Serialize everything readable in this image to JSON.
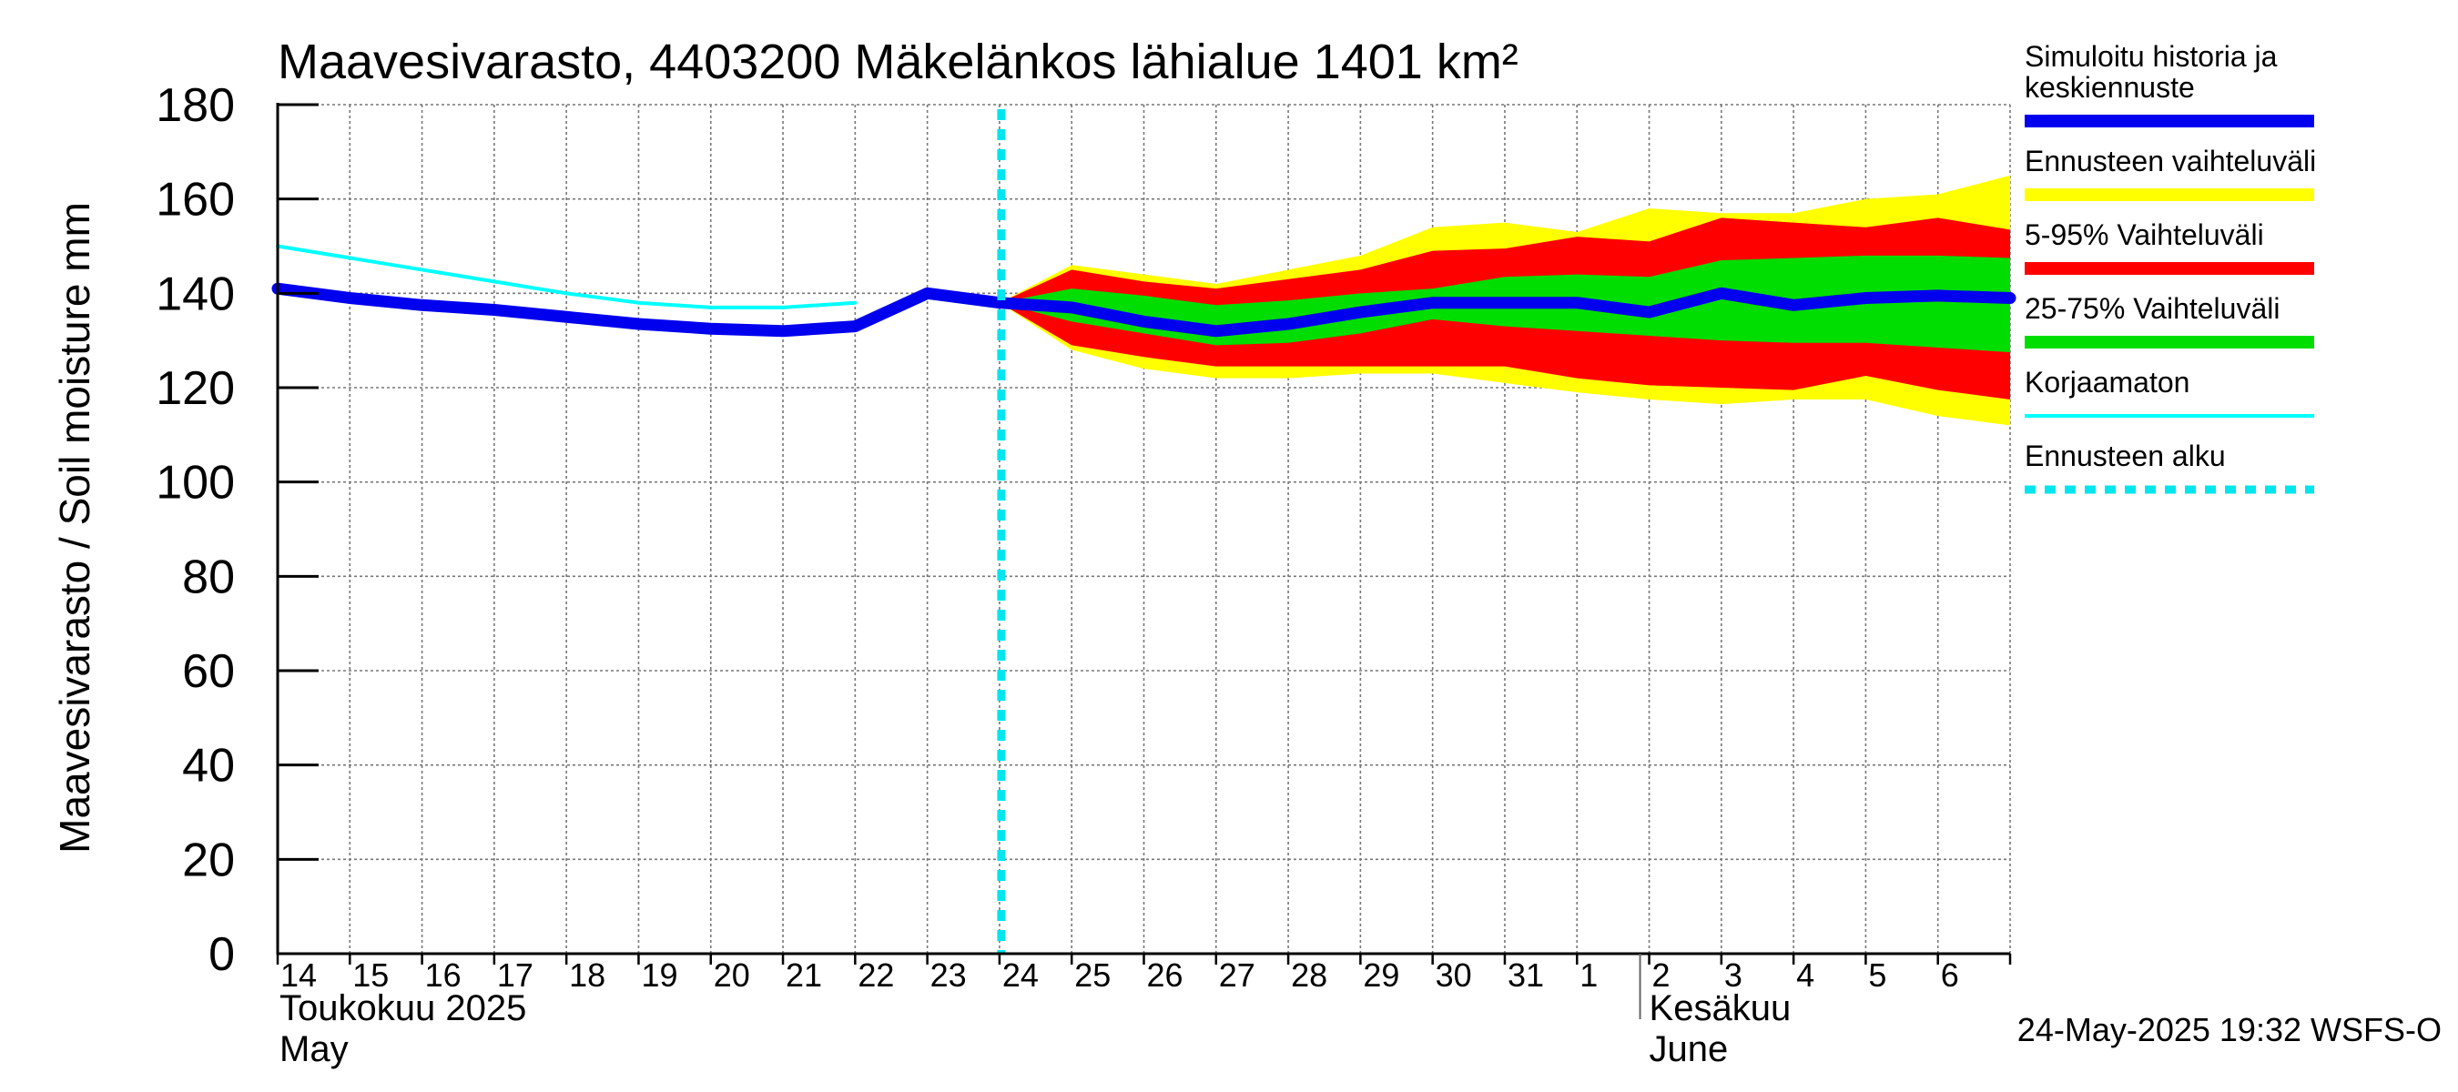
{
  "chart_data": {
    "type": "area",
    "title": "Maavesivarasto, 4403200 Mäkelänkos lähialue 1401 km²",
    "ylabel": "Maavesivarasto / Soil moisture   mm",
    "ylim": [
      0,
      180
    ],
    "yticks": [
      "0",
      "20",
      "40",
      "60",
      "80",
      "100",
      "120",
      "140",
      "160",
      "180"
    ],
    "grid": true,
    "x_day_range": [
      0,
      24
    ],
    "day_labels": [
      "14",
      "15",
      "16",
      "17",
      "18",
      "19",
      "20",
      "21",
      "22",
      "23",
      "24",
      "25",
      "26",
      "27",
      "28",
      "29",
      "30",
      "31",
      "1",
      "2",
      "3",
      "4",
      "5",
      "6"
    ],
    "month_labels": [
      {
        "line1": "Toukokuu  2025",
        "line2": "May",
        "day": 0
      },
      {
        "line1": "Kesäkuu",
        "line2": "June",
        "day": 19
      }
    ],
    "forecast_start_day": 10,
    "timestamp": "24-May-2025 19:32 WSFS-O",
    "legend": [
      {
        "label": "Simuloitu historia ja keskiennuste",
        "color": "#0000ee",
        "style": "thick"
      },
      {
        "label": "Ennusteen vaihteluväli",
        "color": "#ffff00",
        "style": "thick"
      },
      {
        "label": "5-95% Vaihteluväli",
        "color": "#ff0000",
        "style": "thick"
      },
      {
        "label": "25-75% Vaihteluväli",
        "color": "#00dd00",
        "style": "thick"
      },
      {
        "label": "Korjaamaton",
        "color": "#00ffff",
        "style": "thin"
      },
      {
        "label": "Ennusteen alku",
        "color": "#00e5ee",
        "style": "dashed"
      }
    ],
    "series": {
      "history": {
        "x": [
          0,
          1,
          2,
          3,
          4,
          5,
          6,
          7,
          8,
          9,
          10
        ],
        "values": [
          141,
          139,
          137.5,
          136.5,
          135,
          133.5,
          132.5,
          132,
          133,
          140,
          138
        ]
      },
      "uncorrected": {
        "x": [
          0,
          1,
          2,
          3,
          4,
          5,
          6,
          7,
          8
        ],
        "values": [
          150,
          147.5,
          145,
          142.5,
          140,
          138,
          137,
          137,
          138
        ]
      },
      "forecast_mean": {
        "x": [
          10,
          11,
          12,
          13,
          14,
          15,
          16,
          17,
          18,
          19,
          20,
          21,
          22,
          23,
          24
        ],
        "values": [
          138,
          137,
          134,
          132,
          133.5,
          136,
          138,
          138,
          138,
          136,
          140,
          137.5,
          139,
          139.5,
          139
        ]
      },
      "band_full": {
        "x": [
          10,
          11,
          12,
          13,
          14,
          15,
          16,
          17,
          18,
          19,
          20,
          21,
          22,
          23,
          24
        ],
        "upper": [
          138,
          146,
          144,
          142,
          145,
          148,
          154,
          155,
          153,
          158,
          157,
          157,
          160,
          161,
          165
        ],
        "lower": [
          138,
          128,
          124,
          122,
          122,
          123,
          123,
          121,
          119,
          117.5,
          116.5,
          117.5,
          117.5,
          114,
          112
        ]
      },
      "band_5_95": {
        "x": [
          10,
          11,
          12,
          13,
          14,
          15,
          16,
          17,
          18,
          19,
          20,
          21,
          22,
          23,
          24
        ],
        "upper": [
          138,
          145,
          142.5,
          141,
          143,
          145,
          149,
          149.5,
          152,
          151,
          156,
          155,
          154,
          156,
          153.5
        ],
        "lower": [
          138,
          129,
          126.5,
          124.5,
          124.5,
          124.5,
          124.5,
          124.5,
          122,
          120.5,
          120,
          119.5,
          122.5,
          119.5,
          117.5
        ]
      },
      "band_25_75": {
        "x": [
          10,
          11,
          12,
          13,
          14,
          15,
          16,
          17,
          18,
          19,
          20,
          21,
          22,
          23,
          24
        ],
        "upper": [
          138,
          141,
          139.5,
          137.5,
          138.5,
          140,
          141,
          143.5,
          144,
          143.5,
          147,
          147.5,
          148,
          148,
          147.5
        ],
        "lower": [
          138,
          134,
          131.5,
          129,
          129.5,
          131.5,
          134.5,
          133,
          132,
          131,
          130,
          129.5,
          129.5,
          128.5,
          127.5
        ]
      }
    }
  }
}
